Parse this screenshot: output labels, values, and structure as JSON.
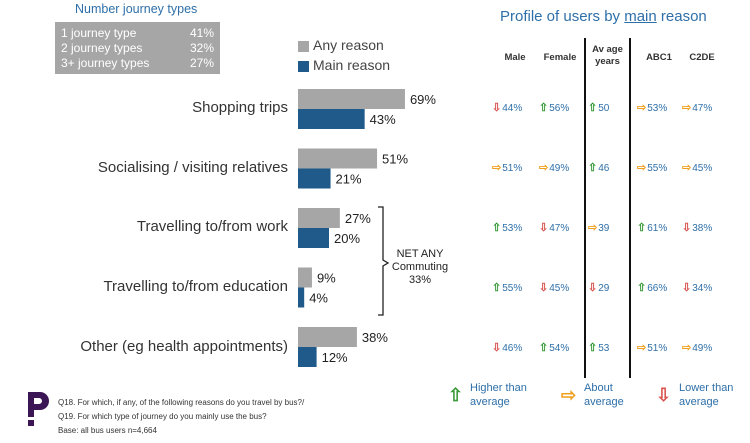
{
  "journey_types": {
    "title": "Number journey types",
    "rows": [
      {
        "label": "1 journey type",
        "value": "41%"
      },
      {
        "label": "2 journey types",
        "value": "32%"
      },
      {
        "label": "3+ journey types",
        "value": "27%"
      }
    ]
  },
  "colors": {
    "any": "#a6a6a6",
    "main": "#1f5a8a",
    "title": "#2e6fa8",
    "up": "#3a9a3a",
    "down": "#d9534f",
    "eq": "#f0a020"
  },
  "chart_data": {
    "type": "bar",
    "orientation": "horizontal",
    "categories": [
      "Shopping trips",
      "Socialising / visiting relatives",
      "Travelling to/from work",
      "Travelling to/from education",
      "Other (eg health appointments)"
    ],
    "series": [
      {
        "name": "Any reason",
        "values": [
          69,
          51,
          27,
          9,
          38
        ],
        "labels": [
          "69%",
          "51%",
          "27%",
          "9%",
          "38%"
        ]
      },
      {
        "name": "Main reason",
        "values": [
          43,
          21,
          20,
          4,
          12
        ],
        "labels": [
          "43%",
          "21%",
          "20%",
          "4%",
          "12%"
        ]
      }
    ],
    "xlim": [
      0,
      100
    ],
    "annotation": {
      "lines": [
        "NET ANY",
        "Commuting",
        "33%"
      ]
    }
  },
  "profile": {
    "title_pre": "Profile of users by ",
    "title_main": "main",
    "title_post": " reason",
    "columns": [
      "Male",
      "Female",
      "Av age years",
      "ABC1",
      "C2DE"
    ],
    "rows": [
      [
        {
          "dir": "down",
          "arrow": "⇩",
          "value": "44%"
        },
        {
          "dir": "up",
          "arrow": "⇧",
          "value": "56%"
        },
        {
          "dir": "up",
          "arrow": "⇧",
          "value": "50"
        },
        {
          "dir": "eq",
          "arrow": "⇨",
          "value": "53%"
        },
        {
          "dir": "eq",
          "arrow": "⇨",
          "value": "47%"
        }
      ],
      [
        {
          "dir": "eq",
          "arrow": "⇨",
          "value": "51%"
        },
        {
          "dir": "eq",
          "arrow": "⇨",
          "value": "49%"
        },
        {
          "dir": "up",
          "arrow": "⇧",
          "value": "46"
        },
        {
          "dir": "eq",
          "arrow": "⇨",
          "value": "55%"
        },
        {
          "dir": "eq",
          "arrow": "⇨",
          "value": "45%"
        }
      ],
      [
        {
          "dir": "up",
          "arrow": "⇧",
          "value": "53%"
        },
        {
          "dir": "down",
          "arrow": "⇩",
          "value": "47%"
        },
        {
          "dir": "eq",
          "arrow": "⇨",
          "value": "39"
        },
        {
          "dir": "up",
          "arrow": "⇧",
          "value": "61%"
        },
        {
          "dir": "down",
          "arrow": "⇩",
          "value": "38%"
        }
      ],
      [
        {
          "dir": "up",
          "arrow": "⇧",
          "value": "55%"
        },
        {
          "dir": "down",
          "arrow": "⇩",
          "value": "45%"
        },
        {
          "dir": "down",
          "arrow": "⇩",
          "value": "29"
        },
        {
          "dir": "up",
          "arrow": "⇧",
          "value": "66%"
        },
        {
          "dir": "down",
          "arrow": "⇩",
          "value": "34%"
        }
      ],
      [
        {
          "dir": "down",
          "arrow": "⇩",
          "value": "46%"
        },
        {
          "dir": "up",
          "arrow": "⇧",
          "value": "54%"
        },
        {
          "dir": "up",
          "arrow": "⇧",
          "value": "53"
        },
        {
          "dir": "eq",
          "arrow": "⇨",
          "value": "51%"
        },
        {
          "dir": "eq",
          "arrow": "⇨",
          "value": "49%"
        }
      ]
    ]
  },
  "key": [
    {
      "dir": "up",
      "arrow": "⇧",
      "l1": "Higher than",
      "l2": "average"
    },
    {
      "dir": "eq",
      "arrow": "⇨",
      "l1": "About",
      "l2": "average"
    },
    {
      "dir": "down",
      "arrow": "⇩",
      "l1": "Lower than",
      "l2": "average"
    }
  ],
  "footnotes": {
    "q18": "Q18. For which, if any, of the following reasons do you travel by bus?/",
    "q19": "Q19. For which type of journey do you mainly use the bus?",
    "base": "Base: all bus users n=4,664"
  }
}
